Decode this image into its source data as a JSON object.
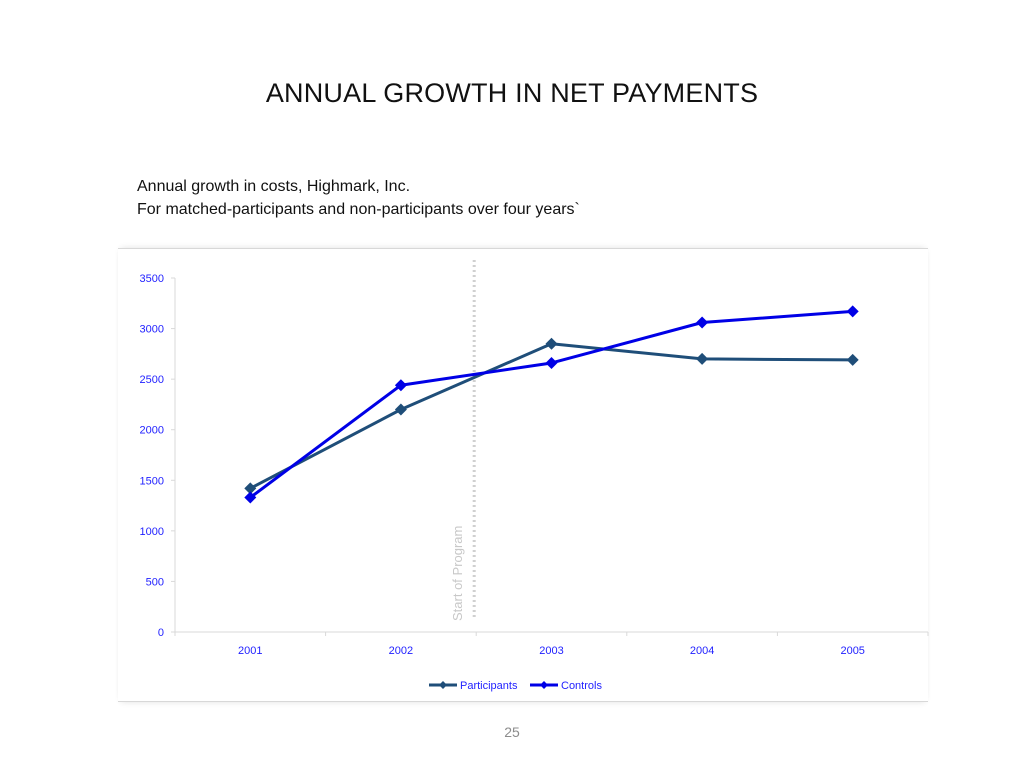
{
  "slide": {
    "title": "ANNUAL GROWTH IN NET PAYMENTS",
    "subtitle_line1": "Annual growth in costs, Highmark, Inc.",
    "subtitle_line2": "For matched-participants and non-participants over four years`",
    "page_number": "25"
  },
  "chart_data": {
    "type": "line",
    "categories": [
      "2001",
      "2002",
      "2003",
      "2004",
      "2005"
    ],
    "ylim": [
      0,
      3500
    ],
    "yticks": [
      0,
      500,
      1000,
      1500,
      2000,
      2500,
      3000,
      3500
    ],
    "series": [
      {
        "name": "Participants",
        "color": "#1f4e79",
        "marker": "diamond",
        "values": [
          1420,
          2200,
          2850,
          2700,
          2690
        ]
      },
      {
        "name": "Controls",
        "color": "#0000e6",
        "marker": "diamond",
        "values": [
          1330,
          2440,
          2660,
          3060,
          3170
        ]
      }
    ],
    "annotation": {
      "text": "Start of Program",
      "color": "#c8c8c8"
    },
    "legend": "bottom",
    "grid": false,
    "axis_label_color": "#1f1fff"
  }
}
